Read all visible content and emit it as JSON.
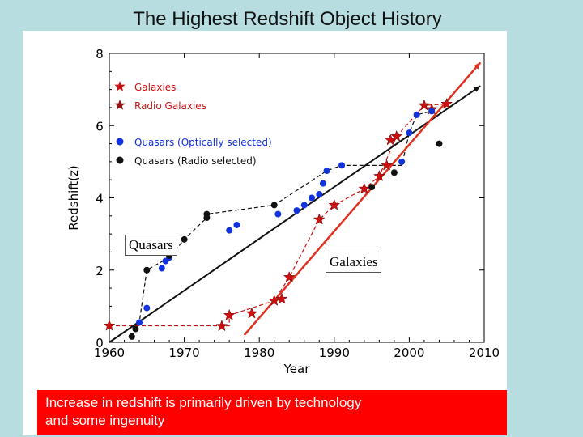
{
  "slide": {
    "title": "The Highest Redshift Object History",
    "caption": "Increase in redshift is primarily driven by technology\nand some ingenuity"
  },
  "chart_data": {
    "type": "scatter",
    "title": "",
    "xlabel": "Year",
    "ylabel": "Redshift(z)",
    "xlim": [
      1960,
      2010
    ],
    "ylim": [
      0,
      8
    ],
    "xticks": [
      1960,
      1970,
      1980,
      1990,
      2000,
      2010
    ],
    "yticks": [
      0,
      2,
      4,
      6,
      8
    ],
    "legend": {
      "position": "top-left",
      "entries": [
        {
          "label": "Galaxies",
          "marker": "star",
          "color": "#cc1111"
        },
        {
          "label": "Radio Galaxies",
          "marker": "star",
          "color": "#991111"
        },
        {
          "label": "Quasars (Optically selected)",
          "marker": "circle",
          "color": "#1133dd"
        },
        {
          "label": "Quasars (Radio selected)",
          "marker": "circle",
          "color": "#111111"
        }
      ]
    },
    "series": [
      {
        "name": "Galaxies",
        "marker": "star",
        "color": "#cc1111",
        "points": [
          [
            1960,
            0.46
          ],
          [
            1975,
            0.45
          ],
          [
            1976,
            0.75
          ],
          [
            1979,
            0.8
          ],
          [
            1982,
            1.15
          ],
          [
            1983,
            1.2
          ],
          [
            1984,
            1.8
          ],
          [
            1988,
            3.4
          ],
          [
            1990,
            3.8
          ],
          [
            1994,
            4.25
          ],
          [
            1996,
            4.6
          ],
          [
            1997,
            4.9
          ],
          [
            1997.5,
            5.6
          ],
          [
            1998.3,
            5.7
          ],
          [
            2002,
            6.56
          ],
          [
            2003,
            6.45
          ],
          [
            2005,
            6.6
          ]
        ]
      },
      {
        "name": "Quasars (Optically selected)",
        "marker": "circle",
        "color": "#1133dd",
        "points": [
          [
            1964,
            0.55
          ],
          [
            1965,
            0.95
          ],
          [
            1967,
            2.05
          ],
          [
            1967.5,
            2.25
          ],
          [
            1968,
            2.35
          ],
          [
            1976,
            3.1
          ],
          [
            1977,
            3.25
          ],
          [
            1982.5,
            3.55
          ],
          [
            1985,
            3.65
          ],
          [
            1986,
            3.8
          ],
          [
            1987,
            4.0
          ],
          [
            1988,
            4.1
          ],
          [
            1988.5,
            4.4
          ],
          [
            1989,
            4.75
          ],
          [
            1991,
            4.9
          ],
          [
            1999,
            5.0
          ],
          [
            2000,
            5.8
          ],
          [
            2001,
            6.3
          ],
          [
            2003,
            6.4
          ]
        ]
      },
      {
        "name": "Quasars (Radio selected)",
        "marker": "circle",
        "color": "#111111",
        "points": [
          [
            1963,
            0.16
          ],
          [
            1963.5,
            0.37
          ],
          [
            1965,
            2.0
          ],
          [
            1968,
            2.4
          ],
          [
            1970,
            2.85
          ],
          [
            1973,
            3.45
          ],
          [
            1973,
            3.55
          ],
          [
            1982,
            3.8
          ],
          [
            1995,
            4.3
          ],
          [
            1998,
            4.7
          ],
          [
            2004,
            5.5
          ]
        ]
      }
    ],
    "dashed_envelopes": [
      {
        "name": "Galaxies record",
        "color": "#cc1111",
        "points": [
          [
            1960,
            0.46
          ],
          [
            1976,
            0.46
          ],
          [
            1976,
            0.75
          ],
          [
            1982,
            1.15
          ],
          [
            1984,
            1.8
          ],
          [
            1988,
            3.4
          ],
          [
            1990,
            3.8
          ],
          [
            1994,
            4.25
          ],
          [
            1996,
            4.6
          ],
          [
            1998.3,
            5.7
          ],
          [
            2002,
            6.56
          ],
          [
            2005,
            6.6
          ]
        ]
      },
      {
        "name": "Quasars record",
        "color": "#111111",
        "points": [
          [
            1963,
            0.16
          ],
          [
            1963.5,
            0.37
          ],
          [
            1964,
            0.55
          ],
          [
            1965,
            2.0
          ],
          [
            1968,
            2.35
          ],
          [
            1970,
            2.85
          ],
          [
            1973,
            3.45
          ],
          [
            1973,
            3.55
          ],
          [
            1982,
            3.8
          ],
          [
            1989,
            4.75
          ],
          [
            1991,
            4.9
          ],
          [
            1995,
            4.9
          ],
          [
            1999,
            4.9
          ],
          [
            2000,
            5.8
          ],
          [
            2001,
            6.3
          ],
          [
            2003,
            6.4
          ]
        ]
      }
    ],
    "trend_lines": [
      {
        "name": "Quasars trend",
        "color": "#111111",
        "from": [
          1960,
          0
        ],
        "to": [
          2009.5,
          7.1
        ]
      },
      {
        "name": "Galaxies trend",
        "color": "#e03020",
        "from": [
          1978,
          0.2
        ],
        "to": [
          2009.5,
          7.75
        ]
      }
    ],
    "annotations": [
      {
        "text": "Quasars",
        "at": [
          1966.5,
          2.75
        ]
      },
      {
        "text": "Galaxies",
        "at": [
          1988.6,
          2.25
        ]
      }
    ]
  }
}
